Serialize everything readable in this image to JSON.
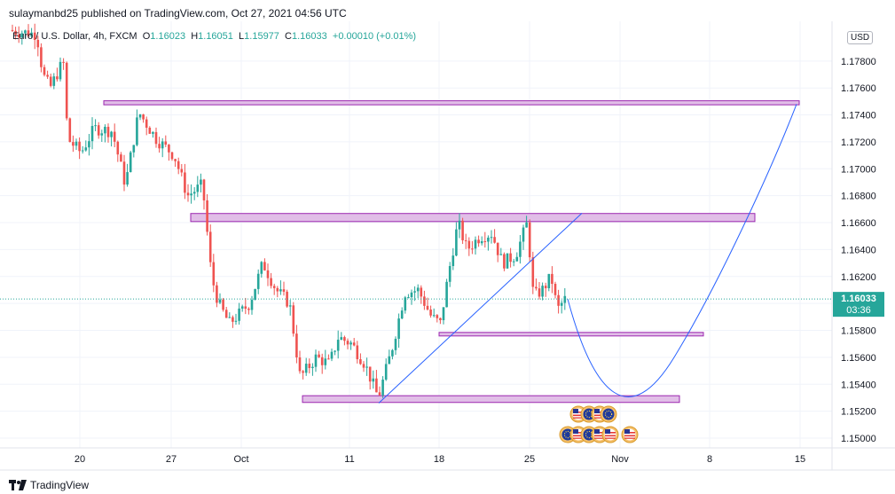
{
  "header": {
    "published": "sulaymanbd25 published on TradingView.com, Oct 27, 2021 04:56 UTC"
  },
  "legend": {
    "symbol": "Euro / U.S. Dollar, 4h, FXCM",
    "o_label": "O",
    "o": "1.16023",
    "h_label": "H",
    "h": "1.16051",
    "l_label": "L",
    "l": "1.15977",
    "c_label": "C",
    "c": "1.16033",
    "change": "+0.00010 (+0.01%)"
  },
  "currency_badge": "USD",
  "price_tag": {
    "price": "1.16033",
    "countdown": "03:36"
  },
  "footer_logo": "TradingView",
  "chart_data": {
    "type": "candlestick",
    "y_ticks": [
      "1.15000",
      "1.15200",
      "1.15400",
      "1.15600",
      "1.15800",
      "1.16000",
      "1.16200",
      "1.16400",
      "1.16600",
      "1.16800",
      "1.17000",
      "1.17200",
      "1.17400",
      "1.17600",
      "1.17800"
    ],
    "x_ticks": [
      "20",
      "27",
      "Oct",
      "11",
      "18",
      "25",
      "Nov",
      "8",
      "15"
    ],
    "ylim": [
      1.149,
      1.1802
    ],
    "colors": {
      "up": "#26a69a",
      "down": "#ef5350",
      "zone_fill": "#e1bee7",
      "zone_stroke": "#9c27b0",
      "line": "#2962ff",
      "price_tag": "#26a69a"
    },
    "zones": [
      {
        "x0": 117,
        "x1": 901,
        "p_top": 1.17505,
        "p_bottom": 1.17475
      },
      {
        "x0": 215,
        "x1": 851,
        "p_top": 1.16668,
        "p_bottom": 1.16608
      },
      {
        "x0": 495,
        "x1": 793,
        "p_top": 1.15785,
        "p_bottom": 1.15765
      },
      {
        "x0": 341,
        "x1": 766,
        "p_top": 1.15315,
        "p_bottom": 1.15265
      }
    ]
  }
}
